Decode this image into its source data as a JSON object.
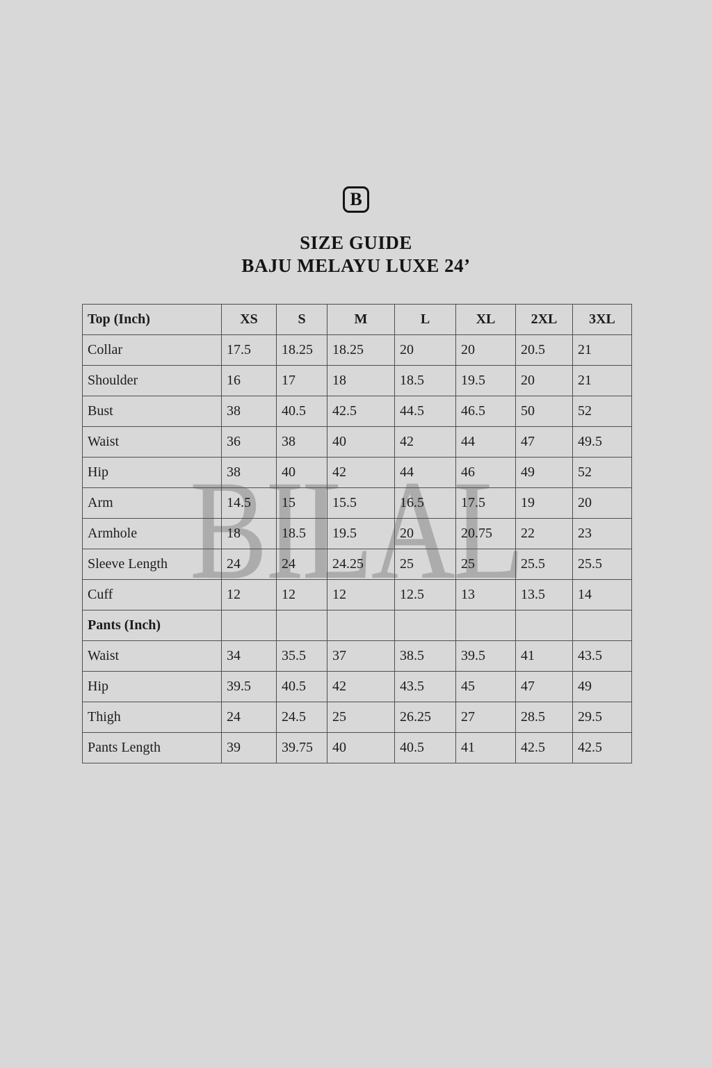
{
  "page": {
    "background_color": "#d8d8d8",
    "text_color": "#141414",
    "border_color": "#4e4e4e"
  },
  "logo": {
    "letter": "B"
  },
  "header": {
    "title": "SIZE GUIDE",
    "subtitle": "BAJU MELAYU LUXE 24’"
  },
  "watermark": {
    "text": "BILAL"
  },
  "table": {
    "columns": [
      "Top (Inch)",
      "XS",
      "S",
      "M",
      "L",
      "XL",
      "2XL",
      "3XL"
    ],
    "rows": [
      {
        "type": "data",
        "label": "Collar",
        "values": [
          "17.5",
          "18.25",
          "18.25",
          "20",
          "20",
          "20.5",
          "21"
        ]
      },
      {
        "type": "data",
        "label": "Shoulder",
        "values": [
          "16",
          "17",
          "18",
          "18.5",
          "19.5",
          "20",
          "21"
        ]
      },
      {
        "type": "data",
        "label": "Bust",
        "values": [
          "38",
          "40.5",
          "42.5",
          "44.5",
          "46.5",
          "50",
          "52"
        ]
      },
      {
        "type": "data",
        "label": "Waist",
        "values": [
          "36",
          "38",
          "40",
          "42",
          "44",
          "47",
          "49.5"
        ]
      },
      {
        "type": "data",
        "label": "Hip",
        "values": [
          "38",
          "40",
          "42",
          "44",
          "46",
          "49",
          "52"
        ]
      },
      {
        "type": "data",
        "label": "Arm",
        "values": [
          "14.5",
          "15",
          "15.5",
          "16.5",
          "17.5",
          "19",
          "20"
        ]
      },
      {
        "type": "data",
        "label": "Armhole",
        "values": [
          "18",
          "18.5",
          "19.5",
          "20",
          "20.75",
          "22",
          "23"
        ]
      },
      {
        "type": "data",
        "label": "Sleeve Length",
        "values": [
          "24",
          "24",
          "24.25",
          "25",
          "25",
          "25.5",
          "25.5"
        ]
      },
      {
        "type": "data",
        "label": "Cuff",
        "values": [
          "12",
          "12",
          "12",
          "12.5",
          "13",
          "13.5",
          "14"
        ]
      },
      {
        "type": "section",
        "label": "Pants (Inch)",
        "values": [
          "",
          "",
          "",
          "",
          "",
          "",
          ""
        ]
      },
      {
        "type": "data",
        "label": "Waist",
        "values": [
          "34",
          "35.5",
          "37",
          "38.5",
          "39.5",
          "41",
          "43.5"
        ]
      },
      {
        "type": "data",
        "label": "Hip",
        "values": [
          "39.5",
          "40.5",
          "42",
          "43.5",
          "45",
          "47",
          "49"
        ]
      },
      {
        "type": "data",
        "label": "Thigh",
        "values": [
          "24",
          "24.5",
          "25",
          "26.25",
          "27",
          "28.5",
          "29.5"
        ]
      },
      {
        "type": "data",
        "label": "Pants Length",
        "values": [
          "39",
          "39.75",
          "40",
          "40.5",
          "41",
          "42.5",
          "42.5"
        ]
      }
    ]
  }
}
